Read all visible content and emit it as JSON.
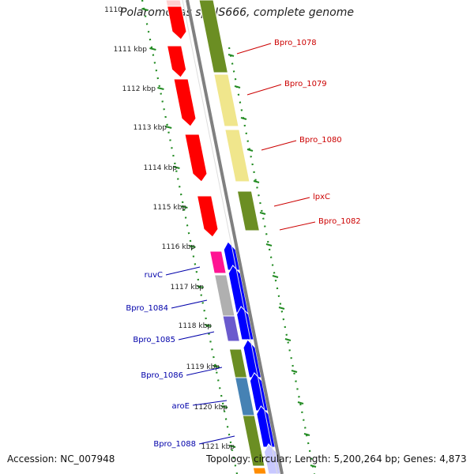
{
  "title": "Polaromonas sp. JS666, complete genome",
  "footer": {
    "accession": "Accession: NC_007948",
    "summary": "Topology: circular; Length: 5,200,264 bp; Genes: 4,873"
  },
  "scale": {
    "unit": "kbp",
    "ticks": [
      "1110",
      "1111 kbp",
      "1112 kbp",
      "1113 kbp",
      "1114 kbp",
      "1115 kbp",
      "1116 kbp",
      "1117 kbp",
      "1118 kbp",
      "1119 kbp",
      "1120 kbp",
      "1121 kbp"
    ]
  },
  "colors": {
    "red": "#ff0000",
    "olive": "#6b8e23",
    "khaki": "#f0e68c",
    "blue": "#0000ff",
    "magenta": "#ff1493",
    "gray": "#b0b0b0",
    "slate": "#6a5acd",
    "steel": "#4682b4",
    "orange": "#ff8c00",
    "backbone": "#808080",
    "dotted_track": "#228b22",
    "label_forward": "#cc0000",
    "label_reverse": "#0000aa"
  },
  "labels_right": [
    "Bpro_1078",
    "Bpro_1079",
    "Bpro_1080",
    "lpxC",
    "Bpro_1082"
  ],
  "labels_left": [
    "ruvC",
    "Bpro_1084",
    "Bpro_1085",
    "Bpro_1086",
    "aroE",
    "Bpro_1088"
  ]
}
